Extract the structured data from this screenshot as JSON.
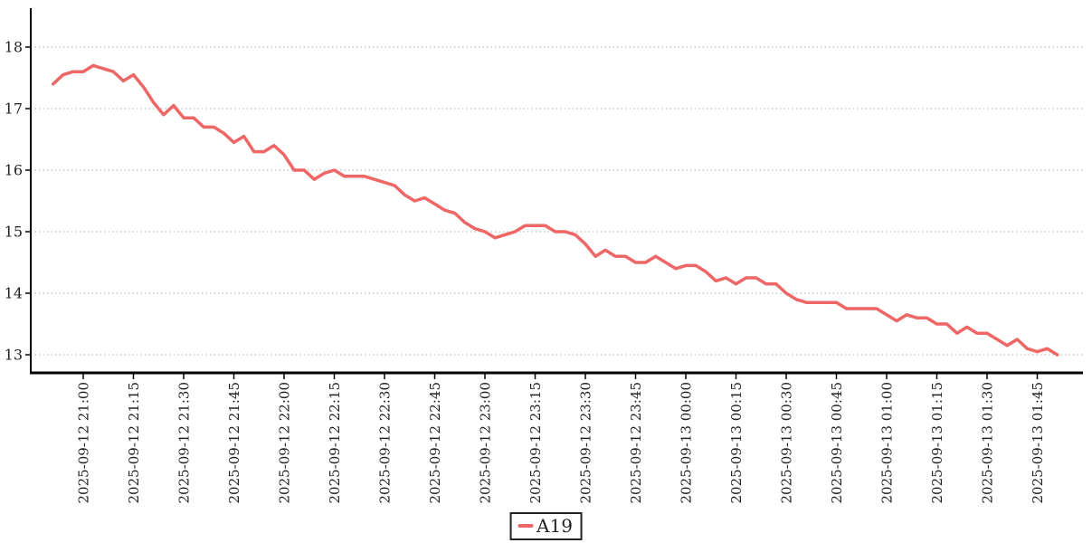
{
  "chart_data": {
    "type": "line",
    "title": "",
    "xlabel": "",
    "ylabel": "",
    "y_ticks": [
      13,
      14,
      15,
      16,
      17,
      18
    ],
    "ylim": [
      12.75,
      18.6
    ],
    "grid": "horizontal-dotted",
    "legend_position": "bottom-center",
    "x_tick_labels": [
      "2025-09-12 21:00",
      "2025-09-12 21:15",
      "2025-09-12 21:30",
      "2025-09-12 21:45",
      "2025-09-12 22:00",
      "2025-09-12 22:15",
      "2025-09-12 22:30",
      "2025-09-12 22:45",
      "2025-09-12 23:00",
      "2025-09-12 23:15",
      "2025-09-12 23:30",
      "2025-09-12 23:45",
      "2025-09-13 00:00",
      "2025-09-13 00:15",
      "2025-09-13 00:30",
      "2025-09-13 00:45",
      "2025-09-13 01:00",
      "2025-09-13 01:15",
      "2025-09-13 01:30",
      "2025-09-13 01:45"
    ],
    "points_per_x_tick": 5,
    "first_x_tick_point_index": 3,
    "series": [
      {
        "name": "A19",
        "color": "#ee6666",
        "values": [
          17.4,
          17.55,
          17.6,
          17.6,
          17.7,
          17.65,
          17.6,
          17.45,
          17.55,
          17.35,
          17.1,
          16.9,
          17.05,
          16.85,
          16.85,
          16.7,
          16.7,
          16.6,
          16.45,
          16.55,
          16.3,
          16.3,
          16.4,
          16.25,
          16.0,
          16.0,
          15.85,
          15.95,
          16.0,
          15.9,
          15.9,
          15.9,
          15.85,
          15.8,
          15.75,
          15.6,
          15.5,
          15.55,
          15.45,
          15.35,
          15.3,
          15.15,
          15.05,
          15.0,
          14.9,
          14.95,
          15.0,
          15.1,
          15.1,
          15.1,
          15.0,
          15.0,
          14.95,
          14.8,
          14.6,
          14.7,
          14.6,
          14.6,
          14.5,
          14.5,
          14.6,
          14.5,
          14.4,
          14.45,
          14.45,
          14.35,
          14.2,
          14.25,
          14.15,
          14.25,
          14.25,
          14.15,
          14.15,
          14.0,
          13.9,
          13.85,
          13.85,
          13.85,
          13.85,
          13.75,
          13.75,
          13.75,
          13.75,
          13.65,
          13.55,
          13.65,
          13.6,
          13.6,
          13.5,
          13.5,
          13.35,
          13.45,
          13.35,
          13.35,
          13.25,
          13.15,
          13.25,
          13.1,
          13.05,
          13.1,
          13.0
        ]
      }
    ]
  },
  "legend": {
    "items": [
      {
        "label": "A19",
        "color": "#ee6666"
      }
    ]
  },
  "colors": {
    "line": "#ee6666",
    "axis": "#000000",
    "grid": "#aaaaaa",
    "label": "#222222",
    "background": "#ffffff"
  }
}
